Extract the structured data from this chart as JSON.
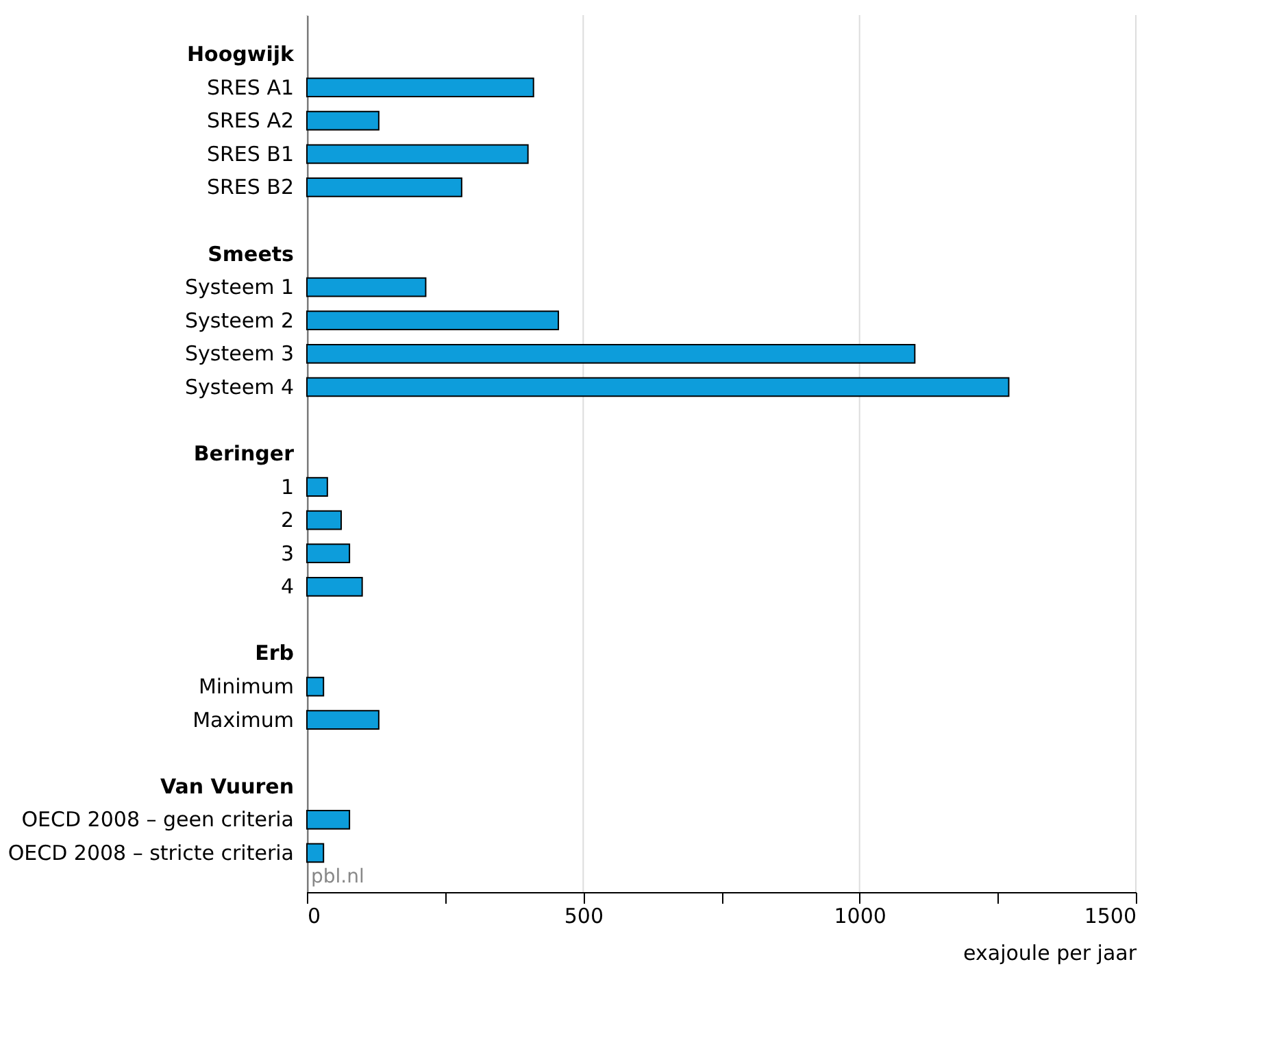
{
  "chart_data": {
    "type": "bar",
    "orientation": "horizontal",
    "categories": [
      "Hoogwijk",
      "SRES A1",
      "SRES A2",
      "SRES B1",
      "SRES B2",
      null,
      "Smeets",
      "Systeem 1",
      "Systeem 2",
      "Systeem 3",
      "Systeem 4",
      null,
      "Beringer",
      "1",
      "2",
      "3",
      "4",
      null,
      "Erb",
      "Minimum",
      "Maximum",
      null,
      "Van Vuuren",
      "OECD  2008 – geen criteria",
      "OECD 2008 – stricte criteria"
    ],
    "values": [
      null,
      410,
      130,
      400,
      280,
      null,
      null,
      215,
      455,
      1100,
      1270,
      null,
      null,
      37,
      62,
      77,
      100,
      null,
      null,
      30,
      130,
      null,
      null,
      77,
      30
    ],
    "color": "#0d9ddb",
    "xlim": [
      0,
      1500
    ],
    "xticks": [
      0,
      {
        "value": 250,
        "label": null
      },
      500,
      {
        "value": 750,
        "label": null
      },
      1000,
      {
        "value": 1250,
        "label": null
      },
      1500
    ],
    "xlabel": "exajoule per jaar",
    "grid": "x",
    "annotations": [
      "pbl.nl"
    ]
  }
}
